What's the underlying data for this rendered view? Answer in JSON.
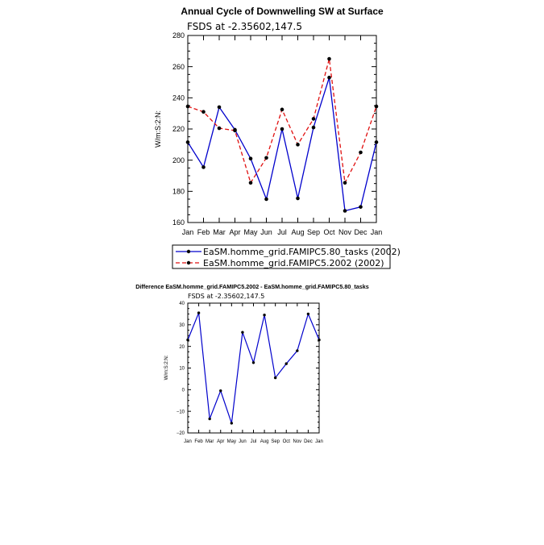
{
  "chart_data": [
    {
      "type": "line",
      "title": "Annual Cycle of Downwelling SW at Surface",
      "subtitle": "FSDS at -2.35602,147.5",
      "xlabel": "",
      "ylabel": "W/m:S:2:N:",
      "categories": [
        "Jan",
        "Feb",
        "Mar",
        "Apr",
        "May",
        "Jun",
        "Jul",
        "Aug",
        "Sep",
        "Oct",
        "Nov",
        "Dec",
        "Jan"
      ],
      "ylim": [
        160,
        280
      ],
      "yticks": [
        "160",
        "180",
        "200",
        "220",
        "240",
        "260",
        "280"
      ],
      "grid": false,
      "legend_position": "bottom",
      "series": [
        {
          "name": "EaSM.homme_grid.FAMIPC5.80_tasks (2002)",
          "color": "#0000cc",
          "dash": "solid",
          "values": [
            211.5,
            195.5,
            234.0,
            219.5,
            201.0,
            175.0,
            220.0,
            175.5,
            221.0,
            253.0,
            167.5,
            170.0,
            211.5
          ]
        },
        {
          "name": "EaSM.homme_grid.FAMIPC5.2002 (2002)",
          "color": "#e01010",
          "dash": "dashed",
          "values": [
            234.5,
            231.0,
            220.5,
            219.0,
            185.5,
            201.5,
            232.5,
            210.0,
            226.5,
            265.0,
            185.5,
            205.0,
            234.5
          ]
        }
      ]
    },
    {
      "type": "line",
      "title": "Difference EaSM.homme_grid.FAMIPC5.2002 - EaSM.homme_grid.FAMIPC5.80_tasks",
      "subtitle": "FSDS at -2.35602,147.5",
      "xlabel": "",
      "ylabel": "W/m:S:2:N:",
      "categories": [
        "Jan",
        "Feb",
        "Mar",
        "Apr",
        "May",
        "Jun",
        "Jul",
        "Aug",
        "Sep",
        "Oct",
        "Nov",
        "Dec",
        "Jan"
      ],
      "ylim": [
        -20,
        40
      ],
      "yticks": [
        "−20",
        "−10",
        "0",
        "10",
        "20",
        "30",
        "40"
      ],
      "grid": false,
      "series": [
        {
          "name": "",
          "color": "#0000cc",
          "values": [
            23.0,
            35.5,
            -13.5,
            -0.5,
            -15.5,
            26.5,
            12.5,
            34.5,
            5.5,
            12.0,
            18.0,
            35.0,
            23.0
          ]
        }
      ]
    }
  ]
}
